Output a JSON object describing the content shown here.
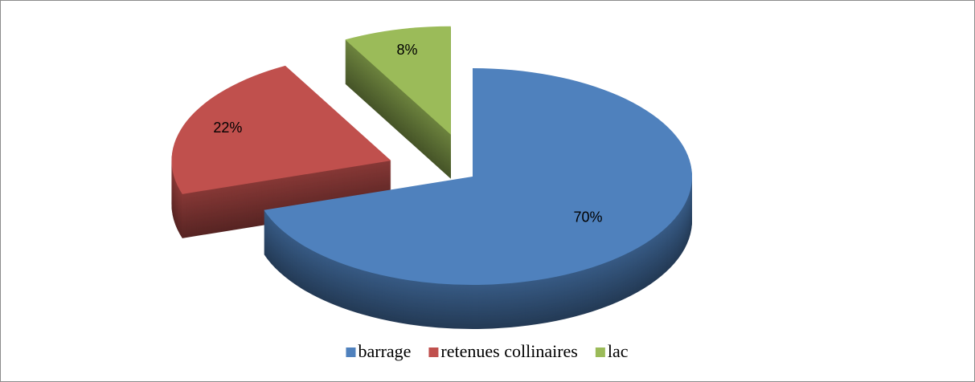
{
  "chart_data": {
    "type": "pie",
    "categories": [
      "barrage",
      "retenues collinaires",
      "lac"
    ],
    "values": [
      70,
      22,
      8
    ],
    "value_labels": [
      "70%",
      "22%",
      "8%"
    ],
    "colors": [
      "#4f81bd",
      "#c0504d",
      "#9bbb59"
    ],
    "legend": "bottom"
  }
}
